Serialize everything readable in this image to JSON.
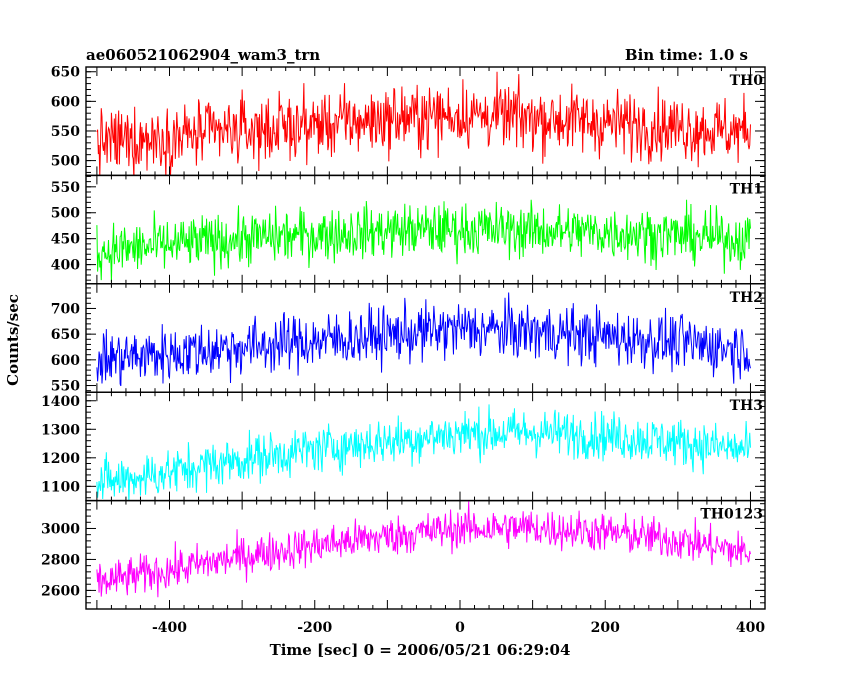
{
  "chart_data": {
    "type": "line",
    "title_left": "ae060521062904_wam3_trn",
    "title_right": "Bin time: 1.0 s",
    "xlabel": "Time [sec] 0 = 2006/05/21 06:29:04",
    "ylabel": "Counts/sec",
    "xlim": [
      -515,
      420
    ],
    "x_ticks": [
      -400,
      -200,
      0,
      200,
      400
    ],
    "x_range": [
      -500,
      400
    ],
    "bin_time": 1.0,
    "grid": false,
    "panels": [
      {
        "name": "TH0",
        "color": "#ff0000",
        "ylim": [
          475,
          658
        ],
        "y_ticks": [
          500,
          550,
          600,
          650
        ],
        "trend": [
          [
            -500,
            530
          ],
          [
            -300,
            550
          ],
          [
            -100,
            570
          ],
          [
            0,
            578
          ],
          [
            100,
            572
          ],
          [
            250,
            560
          ],
          [
            400,
            548
          ]
        ],
        "noise": 28
      },
      {
        "name": "TH1",
        "color": "#00ff00",
        "ylim": [
          363,
          572
        ],
        "y_ticks": [
          400,
          450,
          500,
          550
        ],
        "trend": [
          [
            -500,
            425
          ],
          [
            -300,
            450
          ],
          [
            -100,
            465
          ],
          [
            0,
            468
          ],
          [
            100,
            466
          ],
          [
            250,
            460
          ],
          [
            400,
            448
          ]
        ],
        "noise": 26
      },
      {
        "name": "TH2",
        "color": "#0000ff",
        "ylim": [
          537,
          748
        ],
        "y_ticks": [
          550,
          600,
          650,
          700
        ],
        "trend": [
          [
            -500,
            600
          ],
          [
            -300,
            625
          ],
          [
            -100,
            648
          ],
          [
            0,
            660
          ],
          [
            100,
            655
          ],
          [
            250,
            640
          ],
          [
            400,
            620
          ]
        ],
        "noise": 28
      },
      {
        "name": "TH3",
        "color": "#00ffff",
        "ylim": [
          1050,
          1430
        ],
        "y_ticks": [
          1100,
          1200,
          1300,
          1400
        ],
        "trend": [
          [
            -500,
            1110
          ],
          [
            -400,
            1150
          ],
          [
            -300,
            1195
          ],
          [
            -200,
            1230
          ],
          [
            -100,
            1258
          ],
          [
            0,
            1285
          ],
          [
            100,
            1290
          ],
          [
            200,
            1278
          ],
          [
            300,
            1255
          ],
          [
            400,
            1225
          ]
        ],
        "noise": 42
      },
      {
        "name": "TH0123",
        "color": "#ff00ff",
        "ylim": [
          2480,
          3180
        ],
        "y_ticks": [
          2600,
          2800,
          3000
        ],
        "trend": [
          [
            -500,
            2650
          ],
          [
            -400,
            2730
          ],
          [
            -300,
            2820
          ],
          [
            -200,
            2890
          ],
          [
            -100,
            2950
          ],
          [
            0,
            3000
          ],
          [
            100,
            3005
          ],
          [
            200,
            2975
          ],
          [
            300,
            2925
          ],
          [
            400,
            2840
          ]
        ],
        "noise": 65
      }
    ]
  }
}
